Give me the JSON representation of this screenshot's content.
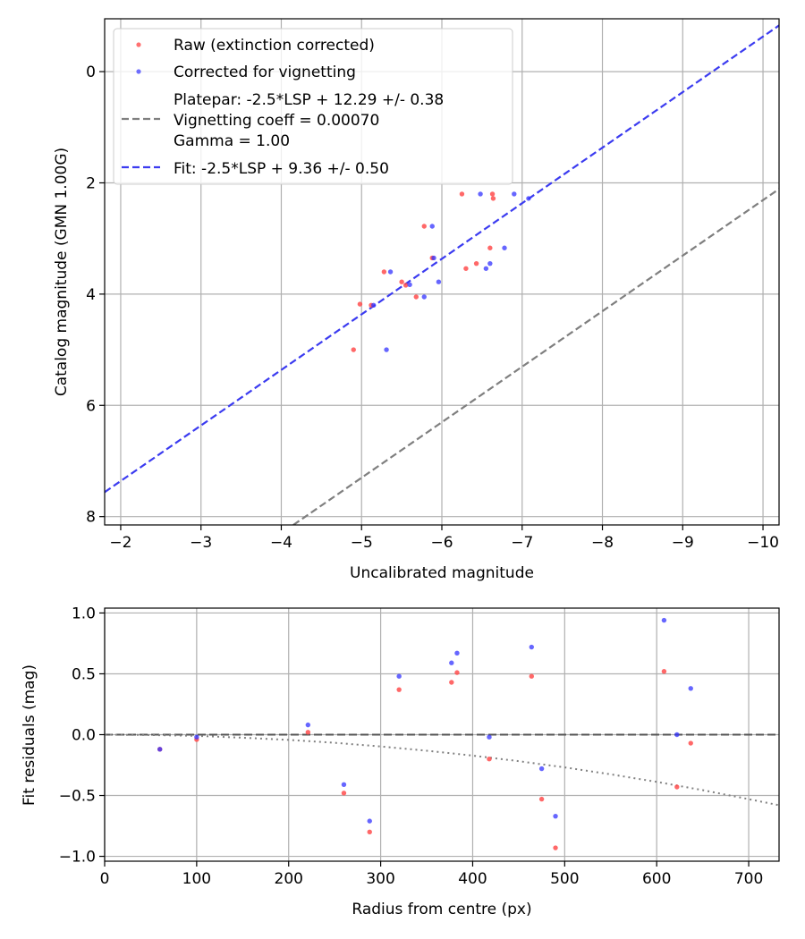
{
  "colors": {
    "raw": "#ff4d4d",
    "corrected": "#3333ff",
    "platepar_line": "#7f7f7f",
    "fit_line": "#3b3bf0",
    "grid": "#b0b0b0"
  },
  "chart_data": [
    {
      "type": "scatter",
      "title": "",
      "xlabel": "Uncalibrated magnitude",
      "ylabel": "Catalog magnitude (GMN 1.00G)",
      "xlim": [
        -1.8,
        -10.2
      ],
      "ylim": [
        8.15,
        -0.95
      ],
      "x_ticks": [
        -2,
        -3,
        -4,
        -5,
        -6,
        -7,
        -8,
        -9,
        -10
      ],
      "x_tick_labels": [
        "−2",
        "−3",
        "−4",
        "−5",
        "−6",
        "−7",
        "−8",
        "−9",
        "−10"
      ],
      "y_ticks": [
        0,
        2,
        4,
        6,
        8
      ],
      "y_tick_labels": [
        "0",
        "2",
        "4",
        "6",
        "8"
      ],
      "grid": true,
      "legend": {
        "placement": "top-left",
        "entries": [
          {
            "label": "Raw (extinction corrected)",
            "marker": "dot",
            "color": "raw"
          },
          {
            "label": "Corrected for vignetting",
            "marker": "dot",
            "color": "corrected"
          },
          {
            "label": "Platepar: -2.5*LSP + 12.29 +/- 0.38",
            "marker": "dashed",
            "color": "platepar_line",
            "extra_lines": [
              "Vignetting coeff = 0.00070",
              "Gamma = 1.00"
            ]
          },
          {
            "label": "Fit: -2.5*LSP + 9.36 +/- 0.50",
            "marker": "dashed",
            "color": "fit_line"
          }
        ]
      },
      "series": [
        {
          "name": "Raw (extinction corrected)",
          "color": "raw",
          "points": [
            [
              -4.9,
              5.0
            ],
            [
              -4.98,
              4.18
            ],
            [
              -5.12,
              4.2
            ],
            [
              -5.28,
              3.6
            ],
            [
              -5.5,
              3.78
            ],
            [
              -5.55,
              3.84
            ],
            [
              -5.68,
              4.05
            ],
            [
              -5.78,
              2.78
            ],
            [
              -5.88,
              3.35
            ],
            [
              -6.25,
              2.2
            ],
            [
              -6.3,
              3.54
            ],
            [
              -6.43,
              3.45
            ],
            [
              -6.6,
              3.17
            ],
            [
              -6.63,
              2.2
            ],
            [
              -6.64,
              2.28
            ]
          ]
        },
        {
          "name": "Corrected for vignetting",
          "color": "corrected",
          "points": [
            [
              -5.15,
              4.2
            ],
            [
              -5.31,
              5.0
            ],
            [
              -5.36,
              3.6
            ],
            [
              -5.6,
              3.83
            ],
            [
              -5.78,
              4.05
            ],
            [
              -5.88,
              2.78
            ],
            [
              -5.9,
              3.35
            ],
            [
              -5.96,
              3.78
            ],
            [
              -6.48,
              2.2
            ],
            [
              -6.55,
              3.54
            ],
            [
              -6.6,
              3.45
            ],
            [
              -6.78,
              3.17
            ],
            [
              -6.9,
              2.2
            ],
            [
              -7.08,
              2.28
            ]
          ]
        }
      ],
      "lines": [
        {
          "name": "Platepar",
          "color": "platepar_line",
          "x": [
            -4.15,
            -10.2
          ],
          "y": [
            8.15,
            2.11
          ]
        },
        {
          "name": "Fit",
          "color": "fit_line",
          "x": [
            -1.8,
            -10.2
          ],
          "y": [
            7.56,
            -0.83
          ]
        }
      ]
    },
    {
      "type": "scatter",
      "title": "",
      "xlabel": "Radius from centre (px)",
      "ylabel": "Fit residuals (mag)",
      "xlim": [
        0,
        733
      ],
      "ylim": [
        -1.04,
        1.04
      ],
      "x_ticks": [
        0,
        100,
        200,
        300,
        400,
        500,
        600,
        700
      ],
      "x_tick_labels": [
        "0",
        "100",
        "200",
        "300",
        "400",
        "500",
        "600",
        "700"
      ],
      "y_ticks": [
        -1.0,
        -0.5,
        0.0,
        0.5,
        1.0
      ],
      "y_tick_labels": [
        "−1.0",
        "−0.5",
        "0.0",
        "0.5",
        "1.0"
      ],
      "grid": true,
      "series": [
        {
          "name": "Raw (extinction corrected)",
          "color": "raw",
          "points": [
            [
              60,
              -0.12
            ],
            [
              100,
              -0.04
            ],
            [
              221,
              0.02
            ],
            [
              260,
              -0.48
            ],
            [
              288,
              -0.8
            ],
            [
              320,
              0.37
            ],
            [
              377,
              0.43
            ],
            [
              383,
              0.51
            ],
            [
              418,
              -0.2
            ],
            [
              464,
              0.48
            ],
            [
              475,
              -0.53
            ],
            [
              490,
              -0.93
            ],
            [
              608,
              0.52
            ],
            [
              622,
              -0.43
            ],
            [
              637,
              -0.07
            ]
          ]
        },
        {
          "name": "Corrected for vignetting",
          "color": "corrected",
          "points": [
            [
              60,
              -0.12
            ],
            [
              100,
              -0.02
            ],
            [
              221,
              0.08
            ],
            [
              260,
              -0.41
            ],
            [
              288,
              -0.71
            ],
            [
              320,
              0.48
            ],
            [
              377,
              0.59
            ],
            [
              383,
              0.67
            ],
            [
              418,
              -0.02
            ],
            [
              464,
              0.72
            ],
            [
              475,
              -0.28
            ],
            [
              490,
              -0.67
            ],
            [
              608,
              0.94
            ],
            [
              622,
              0.0
            ],
            [
              637,
              0.38
            ]
          ]
        }
      ],
      "zero_line": {
        "y": 0.0,
        "style": "dashed"
      },
      "vignetting_curve": {
        "style": "dotted",
        "coeff": 0.0007,
        "gamma": 1.0,
        "x": [
          0,
          50,
          100,
          150,
          200,
          250,
          300,
          350,
          400,
          450,
          500,
          550,
          600,
          650,
          700,
          733
        ],
        "y": [
          0,
          -0.003,
          -0.01,
          -0.025,
          -0.043,
          -0.067,
          -0.097,
          -0.132,
          -0.172,
          -0.218,
          -0.269,
          -0.326,
          -0.388,
          -0.456,
          -0.53,
          -0.58
        ]
      }
    }
  ]
}
